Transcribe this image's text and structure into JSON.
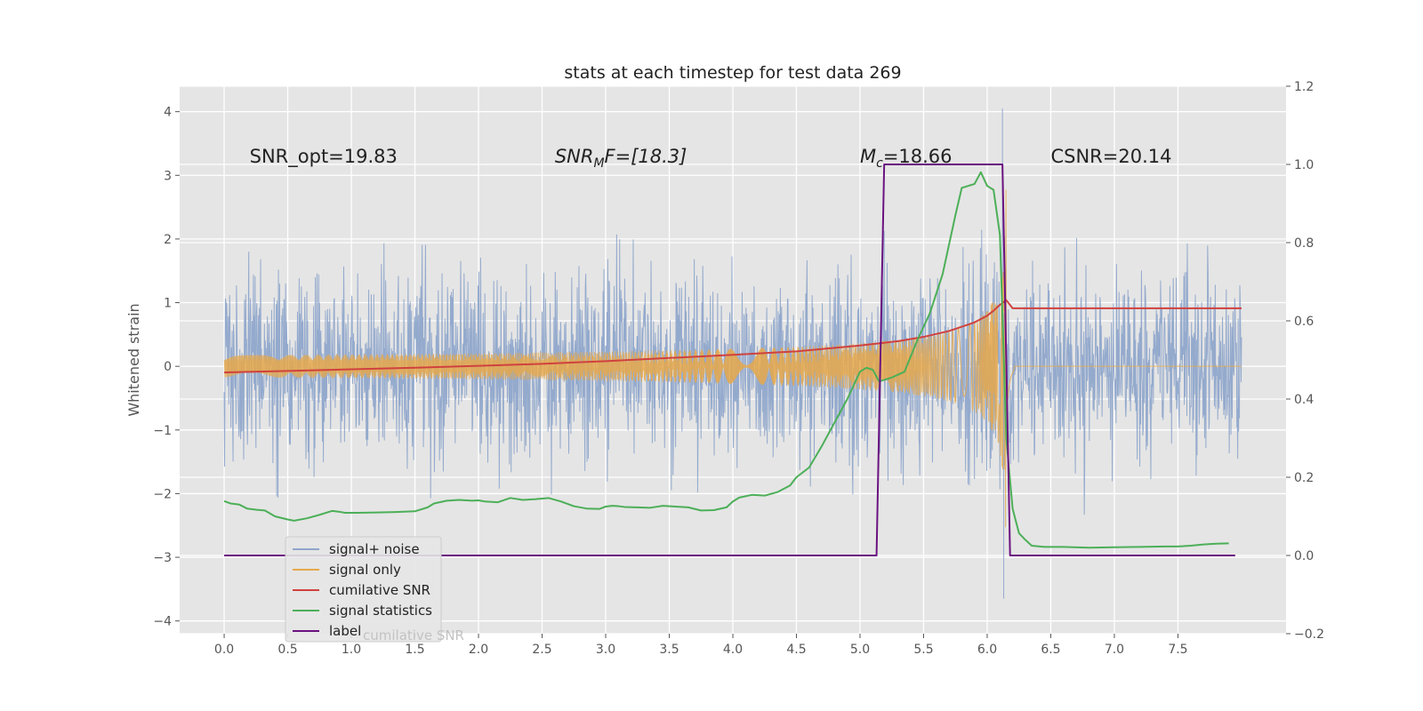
{
  "chart_data": {
    "type": "line",
    "title": "stats at each timestep for test data 269",
    "ylabel": "Whitened strain",
    "xlim": [
      -0.35,
      8.35
    ],
    "ylim_left": [
      -4.2,
      4.4
    ],
    "ylim_right": [
      -0.2,
      1.2
    ],
    "x_ticks": [
      "0.0",
      "0.5",
      "1.0",
      "1.5",
      "2.0",
      "2.5",
      "3.0",
      "3.5",
      "4.0",
      "4.5",
      "5.0",
      "5.5",
      "6.0",
      "6.5",
      "7.0",
      "7.5"
    ],
    "x_tick_values": [
      0,
      0.5,
      1,
      1.5,
      2,
      2.5,
      3,
      3.5,
      4,
      4.5,
      5,
      5.5,
      6,
      6.5,
      7,
      7.5
    ],
    "y_ticks_left": [
      "−4",
      "−3",
      "−2",
      "−1",
      "0",
      "1",
      "2",
      "3",
      "4"
    ],
    "y_tick_values_left": [
      -4,
      -3,
      -2,
      -1,
      0,
      1,
      2,
      3,
      4
    ],
    "y_ticks_right": [
      "−0.2",
      "0.0",
      "0.2",
      "0.4",
      "0.6",
      "0.8",
      "1.0",
      "1.2"
    ],
    "y_tick_values_right": [
      -0.2,
      0,
      0.2,
      0.4,
      0.6,
      0.8,
      1.0,
      1.2
    ],
    "grid": true,
    "legend_position": "lower-left",
    "annotations": [
      {
        "name": "snr-opt",
        "x": 0.2,
        "y": 3.3,
        "text": "SNR_opt=19.83"
      },
      {
        "name": "snr-mf",
        "x": 2.6,
        "y": 3.3,
        "pre": "SNR",
        "sub": "M",
        "post": "F=[18.3]"
      },
      {
        "name": "chirp-mass",
        "x": 5.0,
        "y": 3.3,
        "pre": "M",
        "sub": "c",
        "post": "=18.66"
      },
      {
        "name": "csnr",
        "x": 6.5,
        "y": 3.3,
        "text": "CSNR=20.14"
      }
    ],
    "series": [
      {
        "name": "signal+ noise",
        "axis": "left",
        "color": "#8fa6cb",
        "noise": {
          "x_start": 0.0,
          "x_end": 8.0,
          "sigma": 0.72,
          "peak_x": 6.12,
          "peak_y": 4.05,
          "low_x": 6.12,
          "low_y": -3.65
        }
      },
      {
        "name": "signal only",
        "axis": "left",
        "color": "#e6a84a",
        "chirp": {
          "x_start": 0.0,
          "merger_x": 6.15,
          "x_end": 8.0,
          "peak_amplitude": 3.1
        }
      },
      {
        "name": "cumilative SNR",
        "axis": "right",
        "color": "#d0413e",
        "x": [
          0,
          0.5,
          1,
          1.5,
          2,
          2.5,
          3,
          3.5,
          4,
          4.5,
          5,
          5.3,
          5.5,
          5.7,
          5.9,
          6.0,
          6.05,
          6.1,
          6.15,
          6.2,
          6.3,
          6.5,
          7,
          7.5,
          8
        ],
        "y": [
          0.468,
          0.472,
          0.476,
          0.48,
          0.485,
          0.49,
          0.497,
          0.505,
          0.513,
          0.522,
          0.537,
          0.548,
          0.559,
          0.574,
          0.596,
          0.613,
          0.626,
          0.641,
          0.653,
          0.632,
          0.632,
          0.632,
          0.632,
          0.632,
          0.632
        ]
      },
      {
        "name": "signal statistics",
        "axis": "right",
        "color": "#4caf58",
        "x": [
          0,
          0.05,
          0.12,
          0.18,
          0.25,
          0.32,
          0.4,
          0.5,
          0.55,
          0.65,
          0.75,
          0.85,
          0.9,
          0.95,
          1.05,
          1.2,
          1.35,
          1.5,
          1.6,
          1.65,
          1.75,
          1.85,
          1.95,
          2.0,
          2.05,
          2.15,
          2.25,
          2.35,
          2.45,
          2.55,
          2.65,
          2.75,
          2.85,
          2.95,
          3.0,
          3.05,
          3.1,
          3.15,
          3.25,
          3.35,
          3.45,
          3.55,
          3.65,
          3.75,
          3.85,
          3.95,
          4.0,
          4.05,
          4.15,
          4.25,
          4.35,
          4.45,
          4.5,
          4.6,
          4.7,
          4.8,
          4.9,
          5.0,
          5.05,
          5.1,
          5.15,
          5.25,
          5.35,
          5.45,
          5.55,
          5.65,
          5.75,
          5.8,
          5.85,
          5.9,
          5.95,
          6.0,
          6.05,
          6.1,
          6.15,
          6.2,
          6.25,
          6.3,
          6.35,
          6.45,
          6.6,
          6.8,
          7.0,
          7.2,
          7.4,
          7.5,
          7.6,
          7.7,
          7.8,
          7.9
        ],
        "y": [
          0.139,
          0.133,
          0.13,
          0.12,
          0.117,
          0.115,
          0.1,
          0.092,
          0.089,
          0.095,
          0.104,
          0.114,
          0.112,
          0.109,
          0.109,
          0.11,
          0.111,
          0.113,
          0.123,
          0.133,
          0.14,
          0.142,
          0.14,
          0.141,
          0.138,
          0.136,
          0.147,
          0.142,
          0.144,
          0.147,
          0.138,
          0.126,
          0.12,
          0.119,
          0.125,
          0.127,
          0.126,
          0.124,
          0.123,
          0.122,
          0.127,
          0.125,
          0.123,
          0.115,
          0.116,
          0.123,
          0.138,
          0.148,
          0.155,
          0.153,
          0.162,
          0.179,
          0.2,
          0.225,
          0.28,
          0.34,
          0.4,
          0.47,
          0.48,
          0.475,
          0.445,
          0.455,
          0.47,
          0.55,
          0.62,
          0.72,
          0.87,
          0.94,
          0.945,
          0.95,
          0.98,
          0.945,
          0.935,
          0.82,
          0.3,
          0.12,
          0.057,
          0.04,
          0.025,
          0.022,
          0.022,
          0.02,
          0.021,
          0.022,
          0.023,
          0.023,
          0.025,
          0.028,
          0.03,
          0.031
        ]
      },
      {
        "name": "label",
        "axis": "right",
        "color": "#6a1280",
        "x": [
          0,
          5.13,
          5.19,
          6.12,
          6.18,
          7.95
        ],
        "y": [
          0.0,
          0.0,
          1.0,
          1.0,
          0.0,
          0.0
        ]
      }
    ],
    "legend_overlay_text": "cumilative SNR"
  }
}
